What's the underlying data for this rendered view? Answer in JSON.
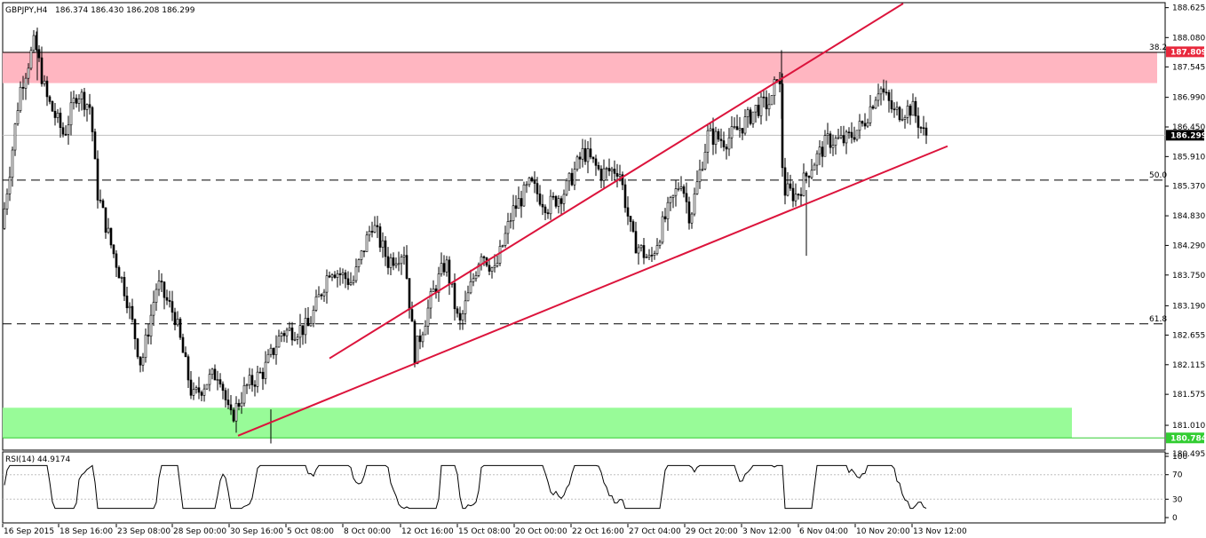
{
  "header": {
    "title": "GBPJPY,H4",
    "ohlc": "186.374 186.430 186.208 186.299"
  },
  "chart_data": [
    {
      "type": "candlestick",
      "symbol": "GBPJPY",
      "timeframe": "H4",
      "ohlc_last": [
        186.374,
        186.43,
        186.208,
        186.299
      ],
      "ylim": [
        180.59,
        188.7
      ],
      "yticks": [
        "188.625",
        "188.080",
        "187.545",
        "186.990",
        "186.450",
        "185.910",
        "185.370",
        "184.830",
        "184.290",
        "183.750",
        "183.190",
        "182.655",
        "182.115",
        "181.575",
        "181.010",
        "180.495"
      ],
      "xticks": [
        "16 Sep 2015",
        "18 Sep 16:00",
        "23 Sep 08:00",
        "28 Sep 00:00",
        "30 Sep 16:00",
        "5 Oct 08:00",
        "8 Oct 00:00",
        "12 Oct 16:00",
        "15 Oct 08:00",
        "20 Oct 00:00",
        "22 Oct 16:00",
        "27 Oct 04:00",
        "29 Oct 20:00",
        "3 Nov 12:00",
        "6 Nov 04:00",
        "10 Nov 20:00",
        "13 Nov 12:00"
      ],
      "current_price": "186.299",
      "resistance_zone": {
        "low": 187.25,
        "high": 187.82,
        "label": "187.809",
        "color": "#ffb6c1"
      },
      "support_zone": {
        "low": 180.78,
        "high": 181.33,
        "label": "180.784",
        "color": "#98fb98"
      },
      "fib_levels": [
        {
          "label": "38.2",
          "value": 187.809
        },
        {
          "label": "50.0",
          "value": 185.48
        },
        {
          "label": "61.8",
          "value": 182.86
        }
      ],
      "channel_lines": [
        {
          "x1": 371,
          "y1": 182.23,
          "x2": 1017,
          "y2": 188.7
        },
        {
          "x1": 268,
          "y1": 180.82,
          "x2": 1067,
          "y2": 186.1
        }
      ],
      "color": "#dc143c",
      "grid": false
    },
    {
      "type": "line",
      "title": "RSI(14) 44.9174",
      "ylim": [
        0,
        100
      ],
      "yticks": [
        "100",
        "70",
        "30",
        "0"
      ],
      "levels": [
        70,
        30
      ]
    }
  ]
}
